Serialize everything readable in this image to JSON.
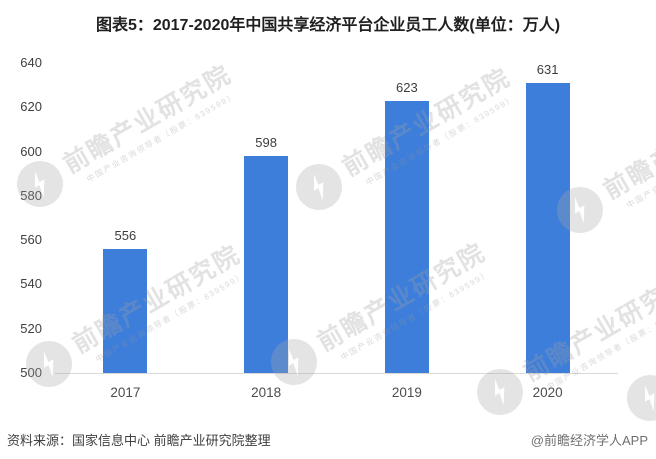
{
  "title": "图表5：2017-2020年中国共享经济平台企业员工人数(单位：万人)",
  "chart_data": {
    "type": "bar",
    "title": "图表5：2017-2020年中国共享经济平台企业员工人数(单位：万人)",
    "categories": [
      "2017",
      "2018",
      "2019",
      "2020"
    ],
    "values": [
      556,
      598,
      623,
      631
    ],
    "unit": "万人",
    "xlabel": "",
    "ylabel": "",
    "ylim": [
      500,
      640
    ],
    "yticks": [
      500,
      520,
      540,
      560,
      580,
      600,
      620,
      640
    ],
    "grid": false,
    "legend": false,
    "bar_color": "#3E7EDB",
    "axis_line_color": "#D9D9D9",
    "tick_label_color": "#404040",
    "value_label_color": "#3D3D3D"
  },
  "footer": {
    "source": "资料来源：国家信息中心 前瞻产业研究院整理",
    "credit": "@前瞻经济学人APP"
  },
  "watermark": {
    "logo_icon": "qianzhan-logo-icon",
    "brand": "前瞻产业研究院",
    "tagline": "中国产业咨询领导者（股票：839599）"
  }
}
